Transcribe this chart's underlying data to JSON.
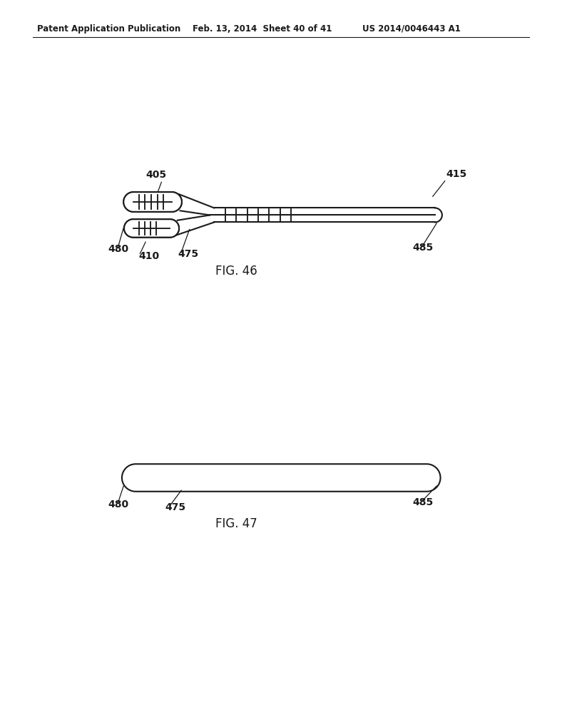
{
  "bg_color": "#ffffff",
  "header_left": "Patent Application Publication",
  "header_mid": "Feb. 13, 2014  Sheet 40 of 41",
  "header_right": "US 2014/0046443 A1",
  "fig46_label": "FIG. 46",
  "fig47_label": "FIG. 47",
  "label_405": "405",
  "label_410": "410",
  "label_415": "415",
  "label_475": "475",
  "label_480": "480",
  "label_485": "485",
  "line_color": "#1a1a1a",
  "line_width": 1.5
}
